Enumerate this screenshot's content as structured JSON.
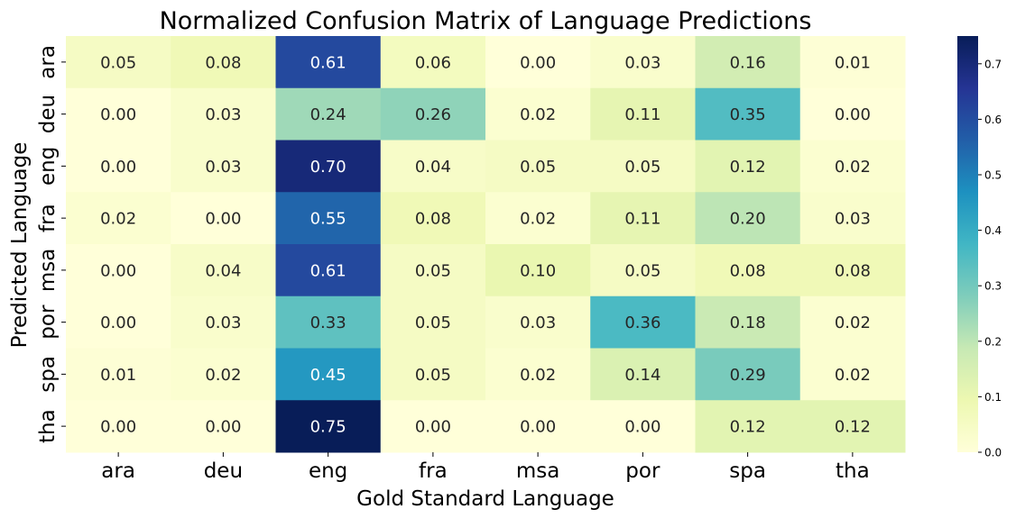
{
  "chart_data": {
    "type": "heatmap",
    "title": "Normalized Confusion Matrix of Language Predictions",
    "xlabel": "Gold Standard Language",
    "ylabel": "Predicted Language",
    "x_categories": [
      "ara",
      "deu",
      "eng",
      "fra",
      "msa",
      "por",
      "spa",
      "tha"
    ],
    "y_categories": [
      "ara",
      "deu",
      "eng",
      "fra",
      "msa",
      "por",
      "spa",
      "tha"
    ],
    "values": [
      [
        0.05,
        0.08,
        0.61,
        0.06,
        0.0,
        0.03,
        0.16,
        0.01
      ],
      [
        0.0,
        0.03,
        0.24,
        0.26,
        0.02,
        0.11,
        0.35,
        0.0
      ],
      [
        0.0,
        0.03,
        0.7,
        0.04,
        0.05,
        0.05,
        0.12,
        0.02
      ],
      [
        0.02,
        0.0,
        0.55,
        0.08,
        0.02,
        0.11,
        0.2,
        0.03
      ],
      [
        0.0,
        0.04,
        0.61,
        0.05,
        0.1,
        0.05,
        0.08,
        0.08
      ],
      [
        0.0,
        0.03,
        0.33,
        0.05,
        0.03,
        0.36,
        0.18,
        0.02
      ],
      [
        0.01,
        0.02,
        0.45,
        0.05,
        0.02,
        0.14,
        0.29,
        0.02
      ],
      [
        0.0,
        0.0,
        0.75,
        0.0,
        0.0,
        0.0,
        0.12,
        0.12
      ]
    ],
    "value_format": "0.00",
    "colormap": "YlGnBu",
    "colorbar": {
      "range": [
        0,
        0.75
      ],
      "ticks": [
        "0.0",
        "0.1",
        "0.2",
        "0.3",
        "0.4",
        "0.5",
        "0.6",
        "0.7"
      ],
      "placement": "right"
    },
    "grid": false
  }
}
